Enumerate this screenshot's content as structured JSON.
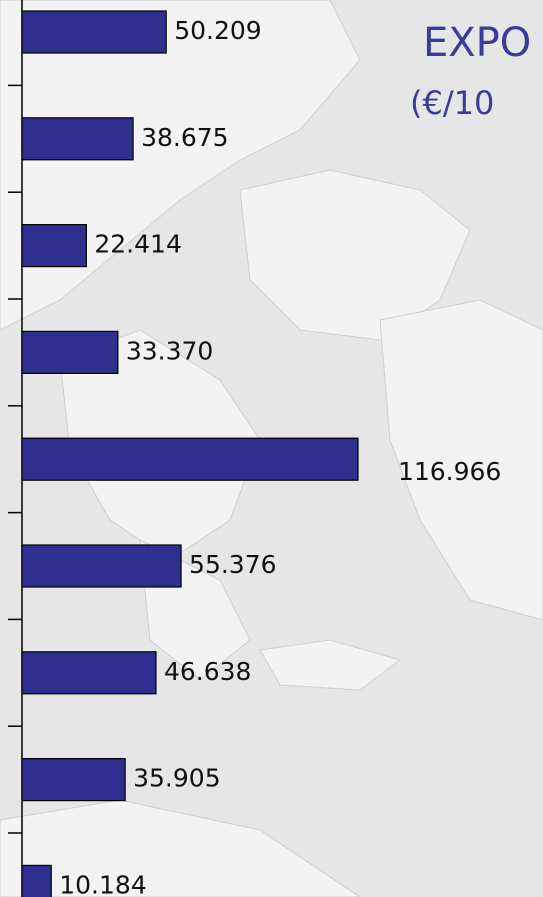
{
  "chart_data": {
    "type": "bar",
    "orientation": "horizontal",
    "title": "EXPO",
    "subtitle": "(€/10",
    "categories": [
      null,
      null,
      null,
      null,
      null,
      null,
      null,
      null,
      null
    ],
    "values": [
      50.209,
      38.675,
      22.414,
      33.37,
      116.966,
      55.376,
      46.638,
      35.905,
      10.184
    ],
    "value_labels": [
      "50.209",
      "38.675",
      "22.414",
      "33.370",
      "116.966",
      "55.376",
      "46.638",
      "35.905",
      "10.184"
    ],
    "color": "#2f2f8f",
    "xlim": [
      0,
      180
    ]
  }
}
